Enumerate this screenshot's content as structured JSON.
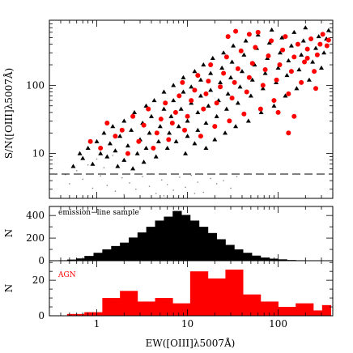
{
  "chart_data": [
    {
      "type": "scatter",
      "xlabel": "",
      "ylabel": "S/N([OIII]λ5007Å)",
      "x_scale": "log",
      "y_scale": "log",
      "xlim": [
        0.3,
        400
      ],
      "ylim": [
        2.2,
        900
      ],
      "yticks": [
        10,
        100
      ],
      "ytick_labels": [
        "10",
        "100"
      ],
      "threshold": {
        "y": 5,
        "style": "dashed"
      },
      "series": [
        {
          "marker": "dot",
          "color": "#888888",
          "points": [
            [
              0.5,
              3.6
            ],
            [
              0.7,
              4.2
            ],
            [
              0.9,
              3.1
            ],
            [
              1.1,
              4.7
            ],
            [
              1.3,
              3.4
            ],
            [
              1.6,
              2.8
            ],
            [
              1.9,
              4.4
            ],
            [
              2.3,
              3.7
            ],
            [
              2.7,
              3.0
            ],
            [
              3.2,
              4.6
            ],
            [
              3.8,
              3.3
            ],
            [
              4.5,
              2.6
            ],
            [
              5.2,
              4.1
            ],
            [
              6.0,
              3.5
            ],
            [
              7.0,
              2.9
            ],
            [
              8.2,
              4.5
            ],
            [
              9.5,
              3.2
            ],
            [
              11,
              4.8
            ],
            [
              13,
              3.8
            ],
            [
              15,
              2.7
            ],
            [
              18,
              4.3
            ],
            [
              21,
              3.6
            ],
            [
              25,
              4.0
            ],
            [
              30,
              3.1
            ],
            [
              35,
              4.6
            ],
            [
              0.6,
              5.6
            ],
            [
              0.8,
              6.8
            ],
            [
              1.0,
              8.3
            ],
            [
              1.2,
              6.2
            ],
            [
              1.5,
              9.4
            ],
            [
              0.45,
              4.9
            ],
            [
              2.0,
              2.5
            ],
            [
              5.5,
              2.4
            ],
            [
              12,
              2.6
            ]
          ]
        },
        {
          "marker": "triangle",
          "color": "#000000",
          "points": [
            [
              0.7,
              8.5
            ],
            [
              0.8,
              12
            ],
            [
              0.9,
              7.0
            ],
            [
              1.0,
              15
            ],
            [
              1.1,
              10
            ],
            [
              1.2,
              20
            ],
            [
              1.3,
              9.0
            ],
            [
              1.4,
              14
            ],
            [
              1.5,
              25
            ],
            [
              1.6,
              11
            ],
            [
              1.8,
              18
            ],
            [
              2.0,
              30
            ],
            [
              2.0,
              8.0
            ],
            [
              2.2,
              13
            ],
            [
              2.4,
              22
            ],
            [
              2.6,
              40
            ],
            [
              2.8,
              10
            ],
            [
              3.0,
              16
            ],
            [
              3.2,
              28
            ],
            [
              3.5,
              50
            ],
            [
              3.5,
              12
            ],
            [
              3.8,
              20
            ],
            [
              4.0,
              35
            ],
            [
              4.3,
              60
            ],
            [
              4.5,
              9.0
            ],
            [
              4.8,
              15
            ],
            [
              5.0,
              25
            ],
            [
              5.5,
              45
            ],
            [
              5.5,
              80
            ],
            [
              6.0,
              12
            ],
            [
              6.3,
              20
            ],
            [
              6.6,
              35
            ],
            [
              7.0,
              60
            ],
            [
              7.0,
              100
            ],
            [
              7.5,
              15
            ],
            [
              8.0,
              25
            ],
            [
              8.5,
              45
            ],
            [
              9.0,
              80
            ],
            [
              9.0,
              130
            ],
            [
              9.5,
              10
            ],
            [
              10,
              18
            ],
            [
              10,
              30
            ],
            [
              11,
              55
            ],
            [
              11,
              95
            ],
            [
              12,
              160
            ],
            [
              12,
              14
            ],
            [
              13,
              22
            ],
            [
              13,
              40
            ],
            [
              14,
              70
            ],
            [
              14,
              120
            ],
            [
              15,
              200
            ],
            [
              16,
              12
            ],
            [
              16,
              28
            ],
            [
              17,
              50
            ],
            [
              18,
              85
            ],
            [
              18,
              150
            ],
            [
              19,
              250
            ],
            [
              20,
              16
            ],
            [
              21,
              35
            ],
            [
              22,
              60
            ],
            [
              23,
              110
            ],
            [
              24,
              180
            ],
            [
              25,
              300
            ],
            [
              26,
              20
            ],
            [
              27,
              45
            ],
            [
              28,
              75
            ],
            [
              30,
              130
            ],
            [
              31,
              220
            ],
            [
              32,
              380
            ],
            [
              34,
              25
            ],
            [
              36,
              55
            ],
            [
              38,
              95
            ],
            [
              40,
              160
            ],
            [
              42,
              280
            ],
            [
              44,
              450
            ],
            [
              47,
              30
            ],
            [
              50,
              70
            ],
            [
              52,
              120
            ],
            [
              55,
              200
            ],
            [
              58,
              350
            ],
            [
              60,
              550
            ],
            [
              65,
              40
            ],
            [
              68,
              90
            ],
            [
              72,
              150
            ],
            [
              76,
              250
            ],
            [
              80,
              420
            ],
            [
              85,
              650
            ],
            [
              90,
              50
            ],
            [
              95,
              110
            ],
            [
              100,
              180
            ],
            [
              105,
              300
            ],
            [
              110,
              500
            ],
            [
              120,
              70
            ],
            [
              125,
              140
            ],
            [
              130,
              230
            ],
            [
              140,
              380
            ],
            [
              150,
              600
            ],
            [
              160,
              90
            ],
            [
              170,
              170
            ],
            [
              180,
              280
            ],
            [
              190,
              450
            ],
            [
              200,
              700
            ],
            [
              220,
              120
            ],
            [
              240,
              220
            ],
            [
              260,
              350
            ],
            [
              280,
              520
            ],
            [
              300,
              180
            ],
            [
              320,
              300
            ],
            [
              340,
              480
            ],
            [
              360,
              640
            ],
            [
              1.7,
              6.5
            ],
            [
              2.5,
              6.0
            ],
            [
              3.3,
              7.5
            ],
            [
              0.55,
              6.5
            ],
            [
              0.65,
              10
            ]
          ]
        },
        {
          "marker": "circle",
          "color": "#ff0000",
          "points": [
            [
              1.1,
              12
            ],
            [
              1.3,
              28
            ],
            [
              1.6,
              18
            ],
            [
              1.9,
              22
            ],
            [
              2.2,
              10
            ],
            [
              2.5,
              35
            ],
            [
              2.9,
              15
            ],
            [
              3.3,
              26
            ],
            [
              3.7,
              45
            ],
            [
              4.2,
              12
            ],
            [
              4.6,
              20
            ],
            [
              5.1,
              32
            ],
            [
              5.7,
              55
            ],
            [
              6.2,
              16
            ],
            [
              6.8,
              28
            ],
            [
              7.4,
              40
            ],
            [
              8.1,
              70
            ],
            [
              8.8,
              110
            ],
            [
              9.3,
              22
            ],
            [
              10,
              35
            ],
            [
              11,
              60
            ],
            [
              12,
              85
            ],
            [
              13,
              140
            ],
            [
              14,
              18
            ],
            [
              15,
              45
            ],
            [
              16,
              75
            ],
            [
              17,
              115
            ],
            [
              18,
              200
            ],
            [
              20,
              25
            ],
            [
              21,
              55
            ],
            [
              23,
              95
            ],
            [
              25,
              150
            ],
            [
              27,
              260
            ],
            [
              29,
              30
            ],
            [
              31,
              65
            ],
            [
              33,
              110
            ],
            [
              36,
              175
            ],
            [
              39,
              320
            ],
            [
              42,
              38
            ],
            [
              45,
              80
            ],
            [
              48,
              130
            ],
            [
              52,
              210
            ],
            [
              56,
              360
            ],
            [
              60,
              600
            ],
            [
              64,
              45
            ],
            [
              68,
              100
            ],
            [
              72,
              170
            ],
            [
              78,
              270
            ],
            [
              84,
              450
            ],
            [
              90,
              60
            ],
            [
              96,
              120
            ],
            [
              104,
              200
            ],
            [
              112,
              330
            ],
            [
              120,
              520
            ],
            [
              130,
              75
            ],
            [
              140,
              160
            ],
            [
              150,
              260
            ],
            [
              165,
              400
            ],
            [
              180,
              110
            ],
            [
              195,
              220
            ],
            [
              210,
              340
            ],
            [
              230,
              480
            ],
            [
              250,
              160
            ],
            [
              270,
              280
            ],
            [
              290,
              400
            ],
            [
              310,
              560
            ],
            [
              345,
              380
            ],
            [
              360,
              460
            ],
            [
              34,
              620
            ],
            [
              48,
              560
            ],
            [
              28,
              520
            ],
            [
              130,
              20
            ],
            [
              100,
              40
            ],
            [
              150,
              35
            ],
            [
              260,
              90
            ],
            [
              210,
              250
            ],
            [
              0.85,
              15
            ]
          ]
        }
      ]
    },
    {
      "type": "bar",
      "subtype": "histogram",
      "x_scale": "log",
      "xlim": [
        0.3,
        400
      ],
      "ylim": [
        0,
        480
      ],
      "yticks": [
        0,
        200,
        400
      ],
      "ytick_labels": [
        "0",
        "200",
        "400"
      ],
      "ylabel": "N",
      "annotation": "emission−line sample",
      "color": "#000000",
      "bin_edges": [
        0.3,
        0.38,
        0.47,
        0.59,
        0.73,
        0.92,
        1.15,
        1.44,
        1.8,
        2.25,
        2.81,
        3.51,
        4.39,
        5.49,
        6.86,
        8.58,
        10.7,
        13.4,
        16.8,
        21,
        26.2,
        32.8,
        40.9,
        51.2,
        64,
        80,
        100,
        125,
        156,
        195,
        244,
        305,
        381
      ],
      "values": [
        2,
        4,
        10,
        20,
        42,
        70,
        100,
        130,
        160,
        205,
        250,
        300,
        355,
        390,
        440,
        405,
        355,
        300,
        245,
        190,
        140,
        100,
        70,
        45,
        28,
        18,
        12,
        6,
        4,
        2,
        1,
        0
      ]
    },
    {
      "type": "bar",
      "subtype": "histogram",
      "x_scale": "log",
      "xlim": [
        0.3,
        400
      ],
      "ylim": [
        0,
        31
      ],
      "yticks": [
        0,
        20
      ],
      "ytick_labels": [
        "0",
        "20"
      ],
      "ylabel": "N",
      "xlabel": "EW([OIII]λ5007Å)",
      "xticks": [
        1,
        10,
        100
      ],
      "xtick_labels": [
        "1",
        "10",
        "100"
      ],
      "annotation": "AGN",
      "annotation_color": "#ff0000",
      "color": "#ff0000",
      "bin_edges": [
        0.3,
        0.38,
        0.47,
        0.59,
        0.73,
        0.92,
        1.15,
        1.44,
        1.8,
        2.25,
        2.81,
        3.51,
        4.39,
        5.49,
        6.86,
        8.58,
        10.7,
        13.4,
        16.8,
        21,
        26.2,
        32.8,
        40.9,
        51.2,
        64,
        80,
        100,
        125,
        156,
        195,
        244,
        305,
        381
      ],
      "values": [
        0,
        0,
        1,
        1,
        2,
        2,
        10,
        10,
        14,
        14,
        8,
        8,
        10,
        10,
        7,
        7,
        25,
        25,
        21,
        21,
        26,
        26,
        12,
        12,
        8,
        8,
        5,
        5,
        7,
        7,
        3,
        6
      ]
    }
  ]
}
